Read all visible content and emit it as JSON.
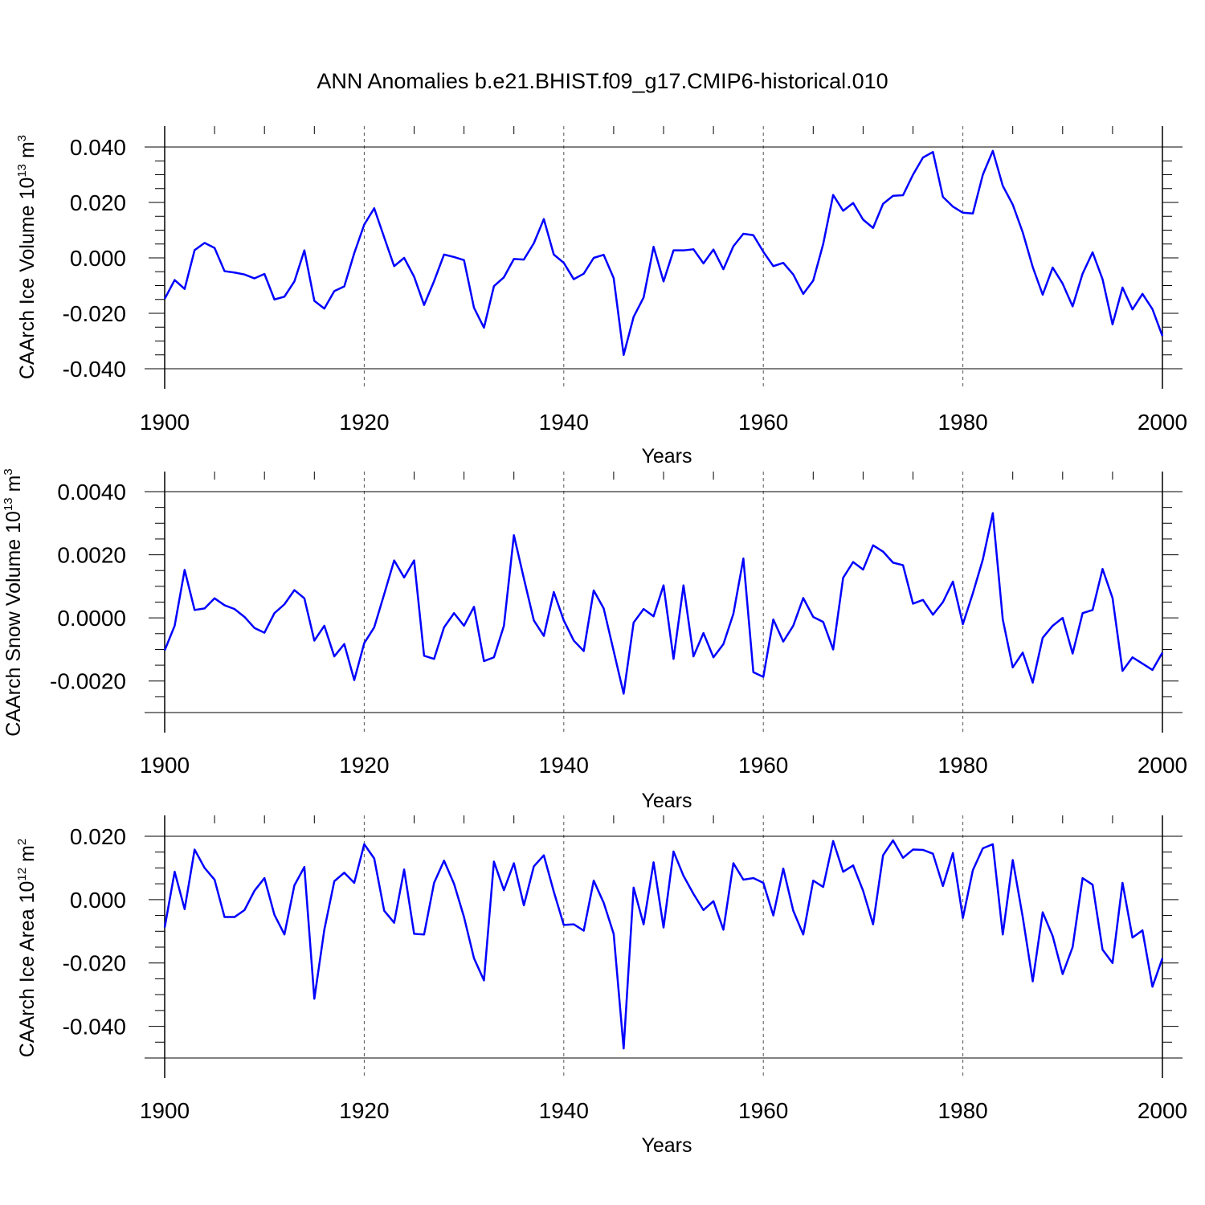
{
  "title": "ANN Anomalies b.e21.BHIST.f09_g17.CMIP6-historical.010",
  "colors": {
    "line": "#0000ff",
    "frame": "#000000",
    "gridline": "#555555"
  },
  "chart_data": [
    {
      "type": "line",
      "ylabel_main": "CAArch Ice Volume 10",
      "ylabel_exp": "13",
      "ylabel_unit": " m",
      "ylabel_unit_exp": "3",
      "xlabel": "Years",
      "xlim": [
        1900,
        2000
      ],
      "ylim": [
        -0.04,
        0.04
      ],
      "xticks": [
        "1900",
        "1920",
        "1940",
        "1960",
        "1980",
        "2000"
      ],
      "yticks": [
        {
          "v": 0.04,
          "label": "0.040"
        },
        {
          "v": 0.02,
          "label": "0.020"
        },
        {
          "v": 0.0,
          "label": "0.000"
        },
        {
          "v": -0.02,
          "label": "-0.020"
        },
        {
          "v": -0.04,
          "label": "-0.040"
        }
      ],
      "x_start": 1900,
      "values": [
        -0.0148,
        -0.008,
        -0.0112,
        0.0028,
        0.0054,
        0.0036,
        -0.0048,
        -0.0053,
        -0.006,
        -0.0074,
        -0.0058,
        -0.015,
        -0.014,
        -0.0085,
        0.0027,
        -0.0155,
        -0.0183,
        -0.012,
        -0.0103,
        0.0017,
        0.012,
        0.0179,
        0.0074,
        -0.003,
        0.0,
        -0.0068,
        -0.017,
        -0.0084,
        0.0012,
        0.0003,
        -0.0008,
        -0.018,
        -0.0252,
        -0.0102,
        -0.007,
        -0.0004,
        -0.0006,
        0.0053,
        0.014,
        0.0012,
        -0.0018,
        -0.0077,
        -0.0057,
        0.0,
        0.0011,
        -0.0073,
        -0.035,
        -0.0213,
        -0.0143,
        0.004,
        -0.0085,
        0.0027,
        0.0027,
        0.0031,
        -0.002,
        0.003,
        -0.0041,
        0.0042,
        0.0087,
        0.0082,
        0.0022,
        -0.003,
        -0.0018,
        -0.006,
        -0.013,
        -0.0082,
        0.005,
        0.0227,
        0.017,
        0.0198,
        0.0138,
        0.0108,
        0.0195,
        0.0224,
        0.0226,
        0.03,
        0.0362,
        0.0382,
        0.022,
        0.0185,
        0.0163,
        0.016,
        0.03,
        0.0386,
        0.026,
        0.0192,
        0.0092,
        -0.0033,
        -0.0133,
        -0.0035,
        -0.0093,
        -0.0175,
        -0.0057,
        0.002,
        -0.0077,
        -0.024,
        -0.0107,
        -0.0186,
        -0.013,
        -0.0185,
        -0.0282
      ]
    },
    {
      "type": "line",
      "ylabel_main": "CAArch Snow Volume 10",
      "ylabel_exp": "13",
      "ylabel_unit": " m",
      "ylabel_unit_exp": "3",
      "xlabel": "Years",
      "xlim": [
        1900,
        2000
      ],
      "ylim": [
        -0.003,
        0.004
      ],
      "xticks": [
        "1900",
        "1920",
        "1940",
        "1960",
        "1980",
        "2000"
      ],
      "yticks": [
        {
          "v": 0.004,
          "label": "0.0040"
        },
        {
          "v": 0.002,
          "label": "0.0020"
        },
        {
          "v": 0.0,
          "label": "0.0000"
        },
        {
          "v": -0.002,
          "label": "-0.0020"
        }
      ],
      "x_start": 1900,
      "values": [
        -0.00103,
        -0.00025,
        0.00152,
        0.00025,
        0.0003,
        0.00062,
        0.0004,
        0.00028,
        3e-05,
        -0.00032,
        -0.00047,
        0.00015,
        0.00043,
        0.00088,
        0.00062,
        -0.00072,
        -0.00025,
        -0.00122,
        -0.00083,
        -0.00197,
        -0.0008,
        -0.0003,
        0.00075,
        0.00182,
        0.00128,
        0.00182,
        -0.0012,
        -0.0013,
        -0.0003,
        0.00015,
        -0.00025,
        0.00035,
        -0.00137,
        -0.00125,
        -0.00025,
        0.00262,
        0.00125,
        -8e-05,
        -0.00057,
        0.00082,
        -8e-05,
        -0.00072,
        -0.00105,
        0.00087,
        0.0003,
        -0.00105,
        -0.0024,
        -0.00015,
        0.00028,
        5e-05,
        0.00103,
        -0.0013,
        0.00103,
        -0.00122,
        -0.00048,
        -0.00125,
        -0.00083,
        0.00013,
        0.00188,
        -0.00172,
        -0.00187,
        -5e-05,
        -0.00075,
        -0.00025,
        0.00063,
        3e-05,
        -0.00013,
        -0.001,
        0.00127,
        0.00177,
        0.00153,
        0.0023,
        0.0021,
        0.00175,
        0.00167,
        0.00045,
        0.00057,
        0.0001,
        0.0005,
        0.00115,
        -0.0002,
        0.00078,
        0.00185,
        0.00332,
        -5e-05,
        -0.00157,
        -0.0011,
        -0.00205,
        -0.00063,
        -0.00025,
        0.0,
        -0.00113,
        0.00015,
        0.00025,
        0.00155,
        0.00063,
        -0.00168,
        -0.00125,
        -0.00145,
        -0.00165,
        -0.0011
      ]
    },
    {
      "type": "line",
      "ylabel_main": "CAArch Ice Area 10",
      "ylabel_exp": "12",
      "ylabel_unit": " m",
      "ylabel_unit_exp": "2",
      "xlabel": "Years",
      "xlim": [
        1900,
        2000
      ],
      "ylim": [
        -0.05,
        0.02
      ],
      "xticks": [
        "1900",
        "1920",
        "1940",
        "1960",
        "1980",
        "2000"
      ],
      "yticks": [
        {
          "v": 0.02,
          "label": "0.020"
        },
        {
          "v": 0.0,
          "label": "0.000"
        },
        {
          "v": -0.02,
          "label": "-0.020"
        },
        {
          "v": -0.04,
          "label": "-0.040"
        }
      ],
      "x_start": 1900,
      "values": [
        -0.0088,
        0.0088,
        -0.003,
        0.0158,
        0.01,
        0.0063,
        -0.0055,
        -0.0055,
        -0.0033,
        0.0028,
        0.0068,
        -0.0048,
        -0.011,
        0.0045,
        0.0103,
        -0.0313,
        -0.0095,
        0.0058,
        0.0085,
        0.0053,
        0.0175,
        0.013,
        -0.0035,
        -0.0073,
        0.0095,
        -0.0108,
        -0.011,
        0.0053,
        0.0123,
        0.005,
        -0.0055,
        -0.0185,
        -0.0255,
        0.012,
        0.003,
        0.0115,
        -0.0018,
        0.0105,
        0.014,
        0.0025,
        -0.008,
        -0.0078,
        -0.0098,
        0.006,
        -0.001,
        -0.0108,
        -0.047,
        0.0038,
        -0.0078,
        0.0118,
        -0.0088,
        0.0152,
        0.0075,
        0.0018,
        -0.0033,
        -0.0005,
        -0.0095,
        0.0115,
        0.0063,
        0.0068,
        0.0053,
        -0.005,
        0.0098,
        -0.0035,
        -0.011,
        0.006,
        0.004,
        0.0185,
        0.0088,
        0.0108,
        0.0028,
        -0.0078,
        0.014,
        0.0187,
        0.0132,
        0.0158,
        0.0157,
        0.0145,
        0.0043,
        0.0147,
        -0.0058,
        0.0093,
        0.0162,
        0.0175,
        -0.011,
        0.0125,
        -0.0055,
        -0.0258,
        -0.004,
        -0.0115,
        -0.0235,
        -0.015,
        0.0068,
        0.0047,
        -0.0158,
        -0.02,
        0.0053,
        -0.012,
        -0.0097,
        -0.0275,
        -0.0185
      ]
    }
  ]
}
